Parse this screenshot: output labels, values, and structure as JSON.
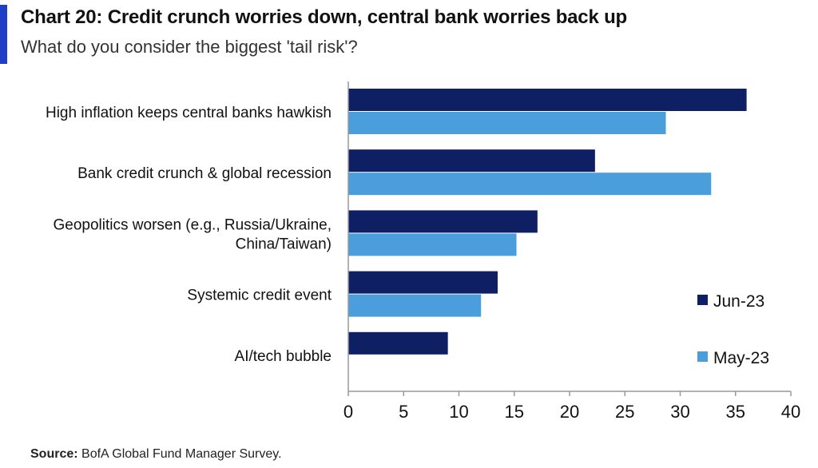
{
  "header": {
    "title": "Chart 20: Credit crunch worries down, central bank worries back up",
    "subtitle": "What do you consider the biggest 'tail risk'?"
  },
  "footer": {
    "source_label": "Source:",
    "source_text": " BofA Global Fund Manager Survey."
  },
  "colors": {
    "accent": "#1f3fc4"
  },
  "chart_data": {
    "type": "bar",
    "orientation": "horizontal",
    "title": "Chart 20: Credit crunch worries down, central bank worries back up",
    "subtitle": "What do you consider the biggest 'tail risk'?",
    "categories": [
      "High inflation keeps central banks hawkish",
      "Bank credit crunch & global recession",
      "Geopolitics worsen (e.g., Russia/Ukraine, China/Taiwan)",
      "Systemic credit event",
      "AI/tech bubble"
    ],
    "category_lines": [
      [
        "High inflation keeps central banks hawkish"
      ],
      [
        "Bank credit crunch & global recession"
      ],
      [
        "Geopolitics worsen (e.g., Russia/Ukraine,",
        "China/Taiwan)"
      ],
      [
        "Systemic credit event"
      ],
      [
        "AI/tech bubble"
      ]
    ],
    "series": [
      {
        "name": "Jun-23",
        "color": "#0f1f63",
        "values": [
          36,
          22.3,
          17.1,
          13.5,
          9
        ]
      },
      {
        "name": "May-23",
        "color": "#4a9edc",
        "values": [
          28.7,
          32.8,
          15.2,
          12,
          null
        ]
      }
    ],
    "xlim": [
      0,
      40
    ],
    "xticks": [
      0,
      5,
      10,
      15,
      20,
      25,
      30,
      35,
      40
    ],
    "grid": false,
    "legend_position": "right"
  }
}
